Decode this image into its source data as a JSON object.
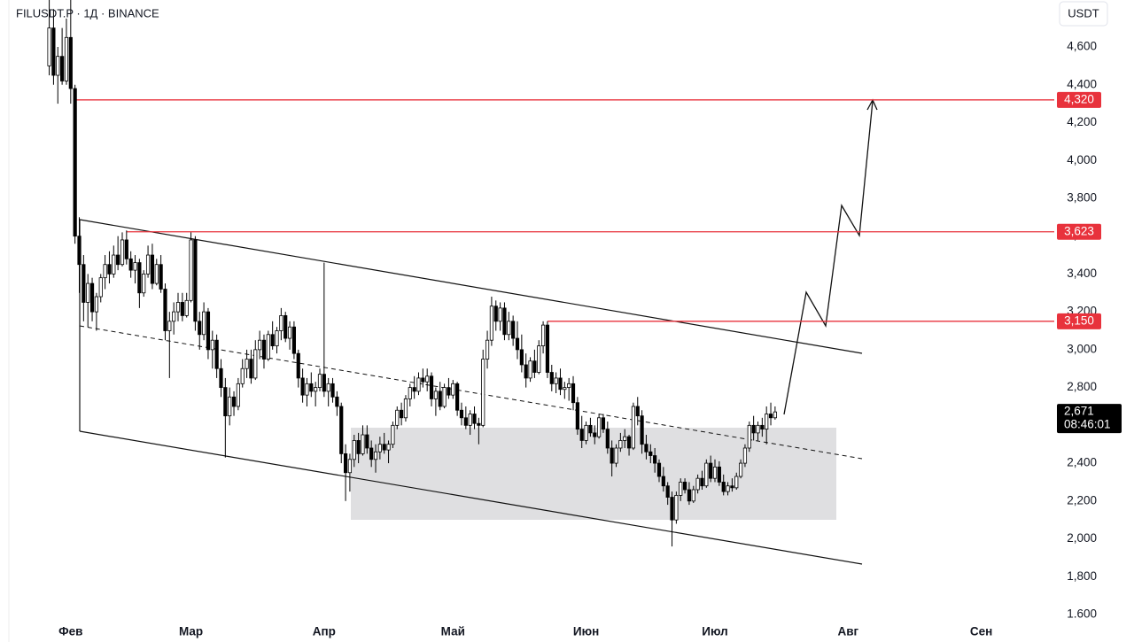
{
  "chart_data": {
    "type": "candlestick",
    "title": "FILUSDT.P · 1Д · BINANCE",
    "currency_button": "USDT",
    "xlim": [
      16.6,
      260
    ],
    "ylim": [
      1572,
      4848
    ],
    "xticks": [
      {
        "value": 31,
        "label": "Фев"
      },
      {
        "value": 59,
        "label": "Мар"
      },
      {
        "value": 90,
        "label": "Апр"
      },
      {
        "value": 120,
        "label": "Май"
      },
      {
        "value": 151,
        "label": "Июн"
      },
      {
        "value": 181,
        "label": "Июл"
      },
      {
        "value": 212,
        "label": "Авг"
      },
      {
        "value": 243,
        "label": "Сен"
      }
    ],
    "yticks": [
      {
        "value": 1600,
        "label": "1.600"
      },
      {
        "value": 1800,
        "label": "1,800"
      },
      {
        "value": 2000,
        "label": "2,000"
      },
      {
        "value": 2200,
        "label": "2,200"
      },
      {
        "value": 2400,
        "label": "2,400"
      },
      {
        "value": 2600,
        "label": "2,600"
      },
      {
        "value": 2800,
        "label": "2,800"
      },
      {
        "value": 3000,
        "label": "3,000"
      },
      {
        "value": 3200,
        "label": "3,200"
      },
      {
        "value": 3400,
        "label": "3,400"
      },
      {
        "value": 3600,
        "label": "3,600"
      },
      {
        "value": 3800,
        "label": "3,800"
      },
      {
        "value": 4000,
        "label": "4,000"
      },
      {
        "value": 4200,
        "label": "4,200"
      },
      {
        "value": 4400,
        "label": "4,400"
      },
      {
        "value": 4600,
        "label": "4,600"
      }
    ],
    "up_color": "#ffffff",
    "down_color": "#000000",
    "level_color": "#e8323c",
    "levels": [
      {
        "value": 4320,
        "label": "4,320",
        "x": 32
      },
      {
        "value": 3623,
        "label": "3,623",
        "x": 44
      },
      {
        "value": 3150,
        "label": "3,150",
        "x": 142
      }
    ],
    "last_price": {
      "value": 2671,
      "label": "2,671"
    },
    "countdown": "08:46:01",
    "candles": [
      [
        26,
        4500,
        4850,
        4450,
        4700
      ],
      [
        27,
        4700,
        4800,
        4400,
        4450
      ],
      [
        28,
        4450,
        4600,
        4300,
        4550
      ],
      [
        29,
        4550,
        4700,
        4400,
        4420
      ],
      [
        30,
        4420,
        4750,
        4400,
        4650
      ],
      [
        31,
        4650,
        4850,
        4300,
        4380
      ],
      [
        32,
        4380,
        4400,
        3560,
        3600
      ],
      [
        33,
        3600,
        3700,
        3300,
        3450
      ],
      [
        34,
        3450,
        3500,
        3150,
        3250
      ],
      [
        35,
        3250,
        3400,
        3120,
        3350
      ],
      [
        36,
        3350,
        3380,
        3150,
        3200
      ],
      [
        37,
        3200,
        3300,
        3100,
        3280
      ],
      [
        38,
        3280,
        3400,
        3250,
        3380
      ],
      [
        39,
        3380,
        3500,
        3320,
        3450
      ],
      [
        40,
        3450,
        3520,
        3350,
        3400
      ],
      [
        41,
        3400,
        3550,
        3380,
        3500
      ],
      [
        42,
        3500,
        3600,
        3420,
        3450
      ],
      [
        43,
        3450,
        3620,
        3440,
        3580
      ],
      [
        44,
        3580,
        3630,
        3450,
        3480
      ],
      [
        45,
        3480,
        3520,
        3380,
        3420
      ],
      [
        46,
        3420,
        3500,
        3350,
        3460
      ],
      [
        47,
        3460,
        3480,
        3220,
        3300
      ],
      [
        48,
        3300,
        3420,
        3280,
        3400
      ],
      [
        49,
        3400,
        3550,
        3380,
        3500
      ],
      [
        50,
        3500,
        3560,
        3320,
        3350
      ],
      [
        51,
        3350,
        3480,
        3340,
        3450
      ],
      [
        52,
        3450,
        3500,
        3300,
        3320
      ],
      [
        53,
        3320,
        3350,
        3050,
        3100
      ],
      [
        54,
        3100,
        3200,
        2850,
        3150
      ],
      [
        55,
        3150,
        3250,
        3080,
        3200
      ],
      [
        56,
        3200,
        3300,
        3150,
        3250
      ],
      [
        57,
        3250,
        3300,
        3150,
        3180
      ],
      [
        58,
        3180,
        3300,
        3170,
        3260
      ],
      [
        59,
        3260,
        3620,
        3250,
        3580
      ],
      [
        60,
        3580,
        3600,
        3100,
        3150
      ],
      [
        61,
        3150,
        3200,
        3000,
        3080
      ],
      [
        62,
        3080,
        3250,
        3050,
        3200
      ],
      [
        63,
        3200,
        3220,
        2950,
        3000
      ],
      [
        64,
        3000,
        3100,
        2900,
        3050
      ],
      [
        65,
        3050,
        3080,
        2850,
        2900
      ],
      [
        66,
        2900,
        2950,
        2750,
        2800
      ],
      [
        67,
        2800,
        2850,
        2430,
        2650
      ],
      [
        68,
        2650,
        2800,
        2600,
        2750
      ],
      [
        69,
        2750,
        2780,
        2650,
        2700
      ],
      [
        70,
        2700,
        2850,
        2680,
        2820
      ],
      [
        71,
        2820,
        2950,
        2800,
        2900
      ],
      [
        72,
        2900,
        3000,
        2850,
        2950
      ],
      [
        73,
        2950,
        3000,
        2820,
        2850
      ],
      [
        74,
        2850,
        3050,
        2840,
        3000
      ],
      [
        75,
        3000,
        3100,
        2950,
        3050
      ],
      [
        76,
        3050,
        3080,
        2900,
        2950
      ],
      [
        77,
        2950,
        3100,
        2940,
        3080
      ],
      [
        78,
        3080,
        3150,
        3000,
        3020
      ],
      [
        79,
        3020,
        3120,
        2980,
        3100
      ],
      [
        80,
        3100,
        3220,
        3050,
        3180
      ],
      [
        81,
        3180,
        3200,
        3040,
        3060
      ],
      [
        82,
        3060,
        3150,
        3000,
        3120
      ],
      [
        83,
        3120,
        3150,
        2950,
        2980
      ],
      [
        84,
        2980,
        3000,
        2800,
        2850
      ],
      [
        85,
        2850,
        2900,
        2720,
        2760
      ],
      [
        86,
        2760,
        2850,
        2700,
        2820
      ],
      [
        87,
        2820,
        2880,
        2750,
        2780
      ],
      [
        88,
        2780,
        2830,
        2700,
        2800
      ],
      [
        89,
        2800,
        2900,
        2780,
        2870
      ],
      [
        90,
        2870,
        3460,
        2750,
        2780
      ],
      [
        91,
        2780,
        2850,
        2700,
        2820
      ],
      [
        92,
        2820,
        2850,
        2720,
        2750
      ],
      [
        93,
        2750,
        2780,
        2650,
        2700
      ],
      [
        94,
        2700,
        2720,
        2400,
        2450
      ],
      [
        95,
        2450,
        2500,
        2200,
        2350
      ],
      [
        96,
        2350,
        2450,
        2250,
        2420
      ],
      [
        97,
        2420,
        2550,
        2380,
        2520
      ],
      [
        98,
        2520,
        2560,
        2400,
        2450
      ],
      [
        99,
        2450,
        2600,
        2440,
        2550
      ],
      [
        100,
        2550,
        2600,
        2450,
        2480
      ],
      [
        101,
        2480,
        2520,
        2380,
        2420
      ],
      [
        102,
        2420,
        2500,
        2350,
        2460
      ],
      [
        103,
        2460,
        2540,
        2420,
        2500
      ],
      [
        104,
        2500,
        2560,
        2450,
        2470
      ],
      [
        105,
        2470,
        2520,
        2400,
        2500
      ],
      [
        106,
        2500,
        2620,
        2480,
        2600
      ],
      [
        107,
        2600,
        2700,
        2580,
        2680
      ],
      [
        108,
        2680,
        2720,
        2600,
        2640
      ],
      [
        109,
        2640,
        2760,
        2620,
        2740
      ],
      [
        110,
        2740,
        2820,
        2700,
        2800
      ],
      [
        111,
        2800,
        2860,
        2740,
        2780
      ],
      [
        112,
        2780,
        2880,
        2760,
        2850
      ],
      [
        113,
        2850,
        2900,
        2800,
        2830
      ],
      [
        114,
        2830,
        2900,
        2780,
        2860
      ],
      [
        115,
        2860,
        2880,
        2700,
        2740
      ],
      [
        116,
        2740,
        2800,
        2650,
        2780
      ],
      [
        117,
        2780,
        2830,
        2680,
        2700
      ],
      [
        118,
        2700,
        2820,
        2690,
        2800
      ],
      [
        119,
        2800,
        2850,
        2740,
        2760
      ],
      [
        120,
        2760,
        2840,
        2740,
        2820
      ],
      [
        121,
        2820,
        2830,
        2650,
        2680
      ],
      [
        122,
        2680,
        2720,
        2600,
        2640
      ],
      [
        123,
        2640,
        2700,
        2580,
        2600
      ],
      [
        124,
        2600,
        2680,
        2550,
        2660
      ],
      [
        125,
        2660,
        2700,
        2580,
        2610
      ],
      [
        126,
        2610,
        2640,
        2500,
        2600
      ],
      [
        127,
        2600,
        3000,
        2590,
        2950
      ],
      [
        128,
        2950,
        3100,
        2900,
        3050
      ],
      [
        129,
        3050,
        3280,
        3020,
        3230
      ],
      [
        130,
        3230,
        3260,
        3100,
        3150
      ],
      [
        131,
        3150,
        3250,
        3100,
        3220
      ],
      [
        132,
        3220,
        3250,
        3050,
        3080
      ],
      [
        133,
        3080,
        3200,
        3050,
        3150
      ],
      [
        134,
        3150,
        3180,
        3020,
        3060
      ],
      [
        135,
        3060,
        3150,
        2950,
        3000
      ],
      [
        136,
        3000,
        3080,
        2880,
        2920
      ],
      [
        137,
        2920,
        2980,
        2800,
        2850
      ],
      [
        138,
        2850,
        2960,
        2830,
        2940
      ],
      [
        139,
        2940,
        3000,
        2850,
        2880
      ],
      [
        140,
        2880,
        3050,
        2870,
        3020
      ],
      [
        141,
        3020,
        3150,
        2980,
        3130
      ],
      [
        142,
        3130,
        3150,
        2850,
        2880
      ],
      [
        143,
        2880,
        2920,
        2780,
        2820
      ],
      [
        144,
        2820,
        2880,
        2770,
        2850
      ],
      [
        145,
        2850,
        2900,
        2760,
        2790
      ],
      [
        146,
        2790,
        2830,
        2740,
        2800
      ],
      [
        147,
        2800,
        2850,
        2730,
        2820
      ],
      [
        148,
        2820,
        2860,
        2680,
        2720
      ],
      [
        149,
        2720,
        2750,
        2550,
        2580
      ],
      [
        150,
        2580,
        2650,
        2480,
        2520
      ],
      [
        151,
        2520,
        2620,
        2500,
        2600
      ],
      [
        152,
        2600,
        2640,
        2540,
        2560
      ],
      [
        153,
        2560,
        2600,
        2500,
        2540
      ],
      [
        154,
        2540,
        2660,
        2530,
        2640
      ],
      [
        155,
        2640,
        2660,
        2560,
        2580
      ],
      [
        156,
        2580,
        2620,
        2450,
        2480
      ],
      [
        157,
        2480,
        2520,
        2330,
        2400
      ],
      [
        158,
        2400,
        2500,
        2380,
        2480
      ],
      [
        159,
        2480,
        2560,
        2460,
        2520
      ],
      [
        160,
        2520,
        2580,
        2480,
        2540
      ],
      [
        161,
        2540,
        2550,
        2440,
        2480
      ],
      [
        162,
        2480,
        2720,
        2470,
        2700
      ],
      [
        163,
        2700,
        2750,
        2600,
        2650
      ],
      [
        164,
        2650,
        2680,
        2450,
        2500
      ],
      [
        165,
        2500,
        2550,
        2420,
        2460
      ],
      [
        166,
        2460,
        2500,
        2400,
        2440
      ],
      [
        167,
        2440,
        2480,
        2350,
        2400
      ],
      [
        168,
        2400,
        2420,
        2300,
        2330
      ],
      [
        169,
        2330,
        2380,
        2250,
        2280
      ],
      [
        170,
        2280,
        2300,
        2180,
        2220
      ],
      [
        171,
        2220,
        2250,
        1960,
        2100
      ],
      [
        172,
        2100,
        2250,
        2080,
        2230
      ],
      [
        173,
        2230,
        2320,
        2200,
        2300
      ],
      [
        174,
        2300,
        2320,
        2240,
        2260
      ],
      [
        175,
        2260,
        2300,
        2180,
        2200
      ],
      [
        176,
        2200,
        2280,
        2190,
        2260
      ],
      [
        177,
        2260,
        2340,
        2240,
        2320
      ],
      [
        178,
        2320,
        2360,
        2260,
        2280
      ],
      [
        179,
        2280,
        2420,
        2270,
        2400
      ],
      [
        180,
        2400,
        2440,
        2300,
        2320
      ],
      [
        181,
        2320,
        2420,
        2300,
        2380
      ],
      [
        182,
        2380,
        2410,
        2280,
        2300
      ],
      [
        183,
        2300,
        2340,
        2230,
        2250
      ],
      [
        184,
        2250,
        2300,
        2230,
        2280
      ],
      [
        185,
        2280,
        2320,
        2250,
        2270
      ],
      [
        186,
        2270,
        2350,
        2260,
        2330
      ],
      [
        187,
        2330,
        2420,
        2320,
        2400
      ],
      [
        188,
        2400,
        2500,
        2380,
        2480
      ],
      [
        189,
        2480,
        2620,
        2460,
        2600
      ],
      [
        190,
        2600,
        2650,
        2520,
        2560
      ],
      [
        191,
        2560,
        2620,
        2520,
        2600
      ],
      [
        192,
        2600,
        2640,
        2540,
        2580
      ],
      [
        193,
        2580,
        2700,
        2500,
        2660
      ],
      [
        194,
        2660,
        2720,
        2600,
        2640
      ],
      [
        195,
        2640,
        2700,
        2630,
        2671
      ]
    ]
  }
}
